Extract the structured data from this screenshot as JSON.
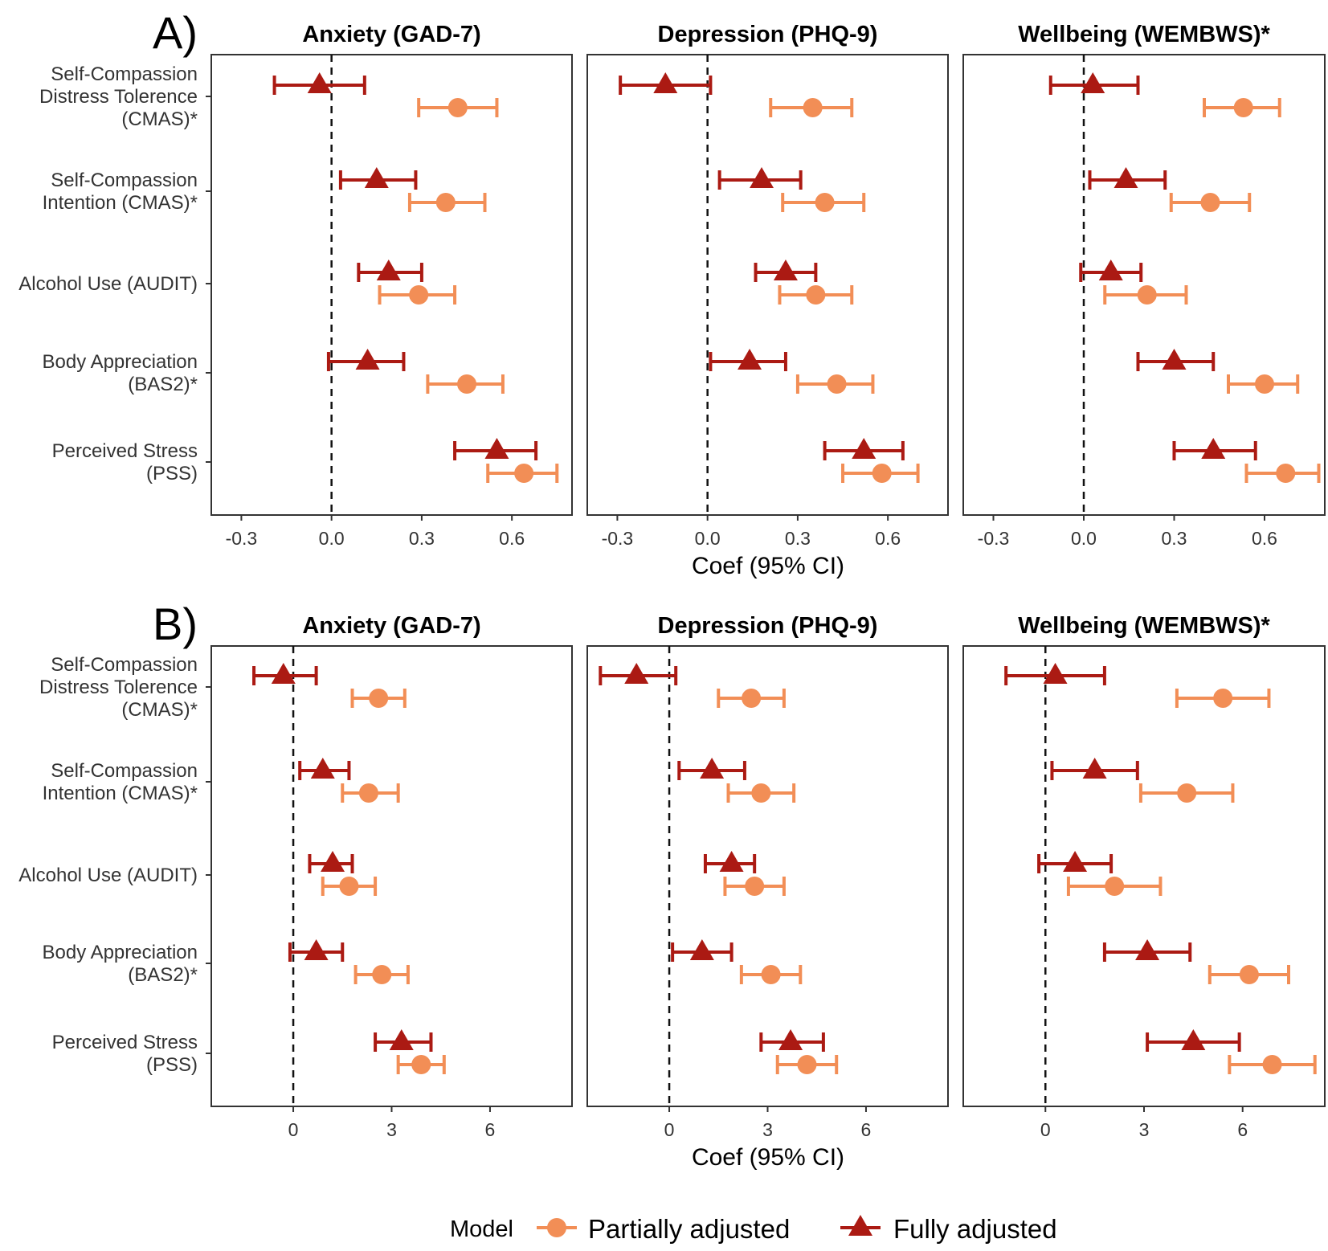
{
  "legend": {
    "title": "Model",
    "entries": [
      {
        "name": "Partially adjusted",
        "shape": "circle",
        "color": "#f28e56"
      },
      {
        "name": "Fully adjusted",
        "shape": "triangle",
        "color": "#ab1a13"
      }
    ]
  },
  "chart_data": [
    {
      "type": "forest",
      "panel_label": "A)",
      "xlabel": "Coef (95% CI)",
      "xlim": [
        -0.4,
        0.8
      ],
      "ticks": [
        -0.3,
        0.0,
        0.3,
        0.6
      ],
      "tick_labels": [
        "-0.3",
        "0.0",
        "0.3",
        "0.6"
      ],
      "reference_line": 0,
      "outcomes": [
        "Anxiety (GAD-7)",
        "Depression (PHQ-9)",
        "Wellbeing (WEMBWS)*"
      ],
      "exposures": [
        [
          "Self-Compassion",
          "Distress Tolerence",
          "(CMAS)*"
        ],
        [
          "Self-Compassion",
          "Intention (CMAS)*"
        ],
        [
          "Alcohol Use (AUDIT)"
        ],
        [
          "Body Appreciation",
          "(BAS2)*"
        ],
        [
          "Perceived Stress",
          "(PSS)"
        ]
      ],
      "series": [
        {
          "name": "Fully adjusted",
          "values": [
            [
              [
                -0.04,
                -0.19,
                0.11
              ],
              [
                0.15,
                0.03,
                0.28
              ],
              [
                0.19,
                0.09,
                0.3
              ],
              [
                0.12,
                -0.01,
                0.24
              ],
              [
                0.55,
                0.41,
                0.68
              ]
            ],
            [
              [
                -0.14,
                -0.29,
                0.01
              ],
              [
                0.18,
                0.04,
                0.31
              ],
              [
                0.26,
                0.16,
                0.36
              ],
              [
                0.14,
                0.01,
                0.26
              ],
              [
                0.52,
                0.39,
                0.65
              ]
            ],
            [
              [
                0.03,
                -0.11,
                0.18
              ],
              [
                0.14,
                0.02,
                0.27
              ],
              [
                0.09,
                -0.01,
                0.19
              ],
              [
                0.3,
                0.18,
                0.43
              ],
              [
                0.43,
                0.3,
                0.57
              ]
            ]
          ]
        },
        {
          "name": "Partially adjusted",
          "values": [
            [
              [
                0.42,
                0.29,
                0.55
              ],
              [
                0.38,
                0.26,
                0.51
              ],
              [
                0.29,
                0.16,
                0.41
              ],
              [
                0.45,
                0.32,
                0.57
              ],
              [
                0.64,
                0.52,
                0.75
              ]
            ],
            [
              [
                0.35,
                0.21,
                0.48
              ],
              [
                0.39,
                0.25,
                0.52
              ],
              [
                0.36,
                0.24,
                0.48
              ],
              [
                0.43,
                0.3,
                0.55
              ],
              [
                0.58,
                0.45,
                0.7
              ]
            ],
            [
              [
                0.53,
                0.4,
                0.65
              ],
              [
                0.42,
                0.29,
                0.55
              ],
              [
                0.21,
                0.07,
                0.34
              ],
              [
                0.6,
                0.48,
                0.71
              ],
              [
                0.67,
                0.54,
                0.78
              ]
            ]
          ]
        }
      ]
    },
    {
      "type": "forest",
      "panel_label": "B)",
      "xlabel": "Coef (95% CI)",
      "xlim": [
        -2.5,
        8.5
      ],
      "ticks": [
        0,
        3,
        6
      ],
      "tick_labels": [
        "0",
        "3",
        "6"
      ],
      "reference_line": 0,
      "outcomes": [
        "Anxiety (GAD-7)",
        "Depression (PHQ-9)",
        "Wellbeing (WEMBWS)*"
      ],
      "exposures": [
        [
          "Self-Compassion",
          "Distress Tolerence",
          "(CMAS)*"
        ],
        [
          "Self-Compassion",
          "Intention (CMAS)*"
        ],
        [
          "Alcohol Use (AUDIT)"
        ],
        [
          "Body Appreciation",
          "(BAS2)*"
        ],
        [
          "Perceived Stress",
          "(PSS)"
        ]
      ],
      "series": [
        {
          "name": "Fully adjusted",
          "values": [
            [
              [
                -0.3,
                -1.2,
                0.7
              ],
              [
                0.9,
                0.2,
                1.7
              ],
              [
                1.2,
                0.5,
                1.8
              ],
              [
                0.7,
                -0.1,
                1.5
              ],
              [
                3.3,
                2.5,
                4.2
              ]
            ],
            [
              [
                -1.0,
                -2.1,
                0.2
              ],
              [
                1.3,
                0.3,
                2.3
              ],
              [
                1.9,
                1.1,
                2.6
              ],
              [
                1.0,
                0.1,
                1.9
              ],
              [
                3.7,
                2.8,
                4.7
              ]
            ],
            [
              [
                0.3,
                -1.2,
                1.8
              ],
              [
                1.5,
                0.2,
                2.8
              ],
              [
                0.9,
                -0.2,
                2.0
              ],
              [
                3.1,
                1.8,
                4.4
              ],
              [
                4.5,
                3.1,
                5.9
              ]
            ]
          ]
        },
        {
          "name": "Partially adjusted",
          "values": [
            [
              [
                2.6,
                1.8,
                3.4
              ],
              [
                2.3,
                1.5,
                3.2
              ],
              [
                1.7,
                0.9,
                2.5
              ],
              [
                2.7,
                1.9,
                3.5
              ],
              [
                3.9,
                3.2,
                4.6
              ]
            ],
            [
              [
                2.5,
                1.5,
                3.5
              ],
              [
                2.8,
                1.8,
                3.8
              ],
              [
                2.6,
                1.7,
                3.5
              ],
              [
                3.1,
                2.2,
                4.0
              ],
              [
                4.2,
                3.3,
                5.1
              ]
            ],
            [
              [
                5.4,
                4.0,
                6.8
              ],
              [
                4.3,
                2.9,
                5.7
              ],
              [
                2.1,
                0.7,
                3.5
              ],
              [
                6.2,
                5.0,
                7.4
              ],
              [
                6.9,
                5.6,
                8.2
              ]
            ]
          ]
        }
      ]
    }
  ]
}
